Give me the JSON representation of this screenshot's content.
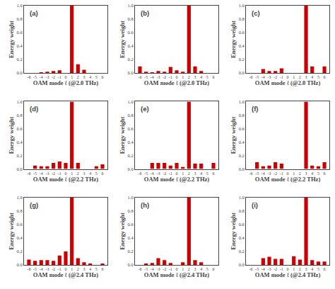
{
  "chart_data": [
    {
      "type": "bar",
      "x": [
        -6,
        -5,
        -4,
        -3,
        -2,
        -1,
        0,
        1,
        2,
        3,
        4,
        5,
        6
      ],
      "values": [
        0.0,
        0.0,
        0.01,
        0.02,
        0.03,
        0.04,
        0.0,
        1.0,
        0.13,
        0.05,
        0.0,
        0.0,
        0.0
      ],
      "color": "#cc0000",
      "xlabel": "OAM mode ℓ (@2.0 THz)",
      "ylabel": "Energy weight",
      "annotations": [
        "(a)"
      ],
      "xlim": [
        -6.8,
        6.8
      ],
      "xticks": [
        -6,
        -5,
        -4,
        -3,
        -2,
        -1,
        0,
        1,
        2,
        3,
        4,
        5,
        6
      ],
      "ylim": [
        0,
        1.0
      ],
      "yticks": [
        {
          "value": 0.0,
          "label": "0.0"
        },
        0.2,
        0.4,
        0.6,
        0.8,
        {
          "value": 1.0,
          "label": "1.0"
        }
      ],
      "grid": false
    },
    {
      "type": "bar",
      "x": [
        -6,
        -5,
        -4,
        -3,
        -2,
        -1,
        0,
        1,
        2,
        3,
        4,
        5,
        6
      ],
      "values": [
        0.1,
        0.02,
        0.01,
        0.03,
        0.02,
        0.09,
        0.04,
        0.02,
        1.0,
        0.1,
        0.03,
        0.0,
        0.0
      ],
      "color": "#cc0000",
      "xlabel": "OAM mode ℓ (@2.0 THz)",
      "ylabel": "Energy weight",
      "annotations": [
        "(b)"
      ],
      "xlim": [
        -6.8,
        6.8
      ],
      "xticks": [
        -6,
        -5,
        -4,
        -3,
        -2,
        -1,
        0,
        1,
        2,
        3,
        4,
        5,
        6
      ],
      "ylim": [
        0,
        1.0
      ],
      "yticks": [
        {
          "value": 0.0,
          "label": "0.0"
        },
        0.2,
        0.4,
        0.6,
        0.8,
        {
          "value": 1.0,
          "label": "1.0"
        }
      ],
      "grid": false
    },
    {
      "type": "bar",
      "x": [
        -6,
        -5,
        -4,
        -3,
        -2,
        -1,
        0,
        1,
        2,
        3,
        4,
        5,
        6
      ],
      "values": [
        0.0,
        0.0,
        0.06,
        0.03,
        0.03,
        0.07,
        0.0,
        0.0,
        0.0,
        1.0,
        0.1,
        0.0,
        0.1
      ],
      "color": "#cc0000",
      "xlabel": "OAM mode ℓ (@2.0 THz)",
      "ylabel": "Energy weight",
      "annotations": [
        "(c)"
      ],
      "xlim": [
        -6.8,
        6.8
      ],
      "xticks": [
        -6,
        -5,
        -4,
        -3,
        -2,
        -1,
        0,
        1,
        2,
        3,
        4,
        5,
        6
      ],
      "ylim": [
        0,
        1.0
      ],
      "yticks": [
        {
          "value": 0.0,
          "label": "0.0"
        },
        0.2,
        0.4,
        0.6,
        0.8,
        {
          "value": 1.0,
          "label": "1.0"
        }
      ],
      "grid": false
    },
    {
      "type": "bar",
      "x": [
        -6,
        -5,
        -4,
        -3,
        -2,
        -1,
        0,
        1,
        2,
        3,
        4,
        5,
        6
      ],
      "values": [
        0.0,
        0.05,
        0.04,
        0.04,
        0.09,
        0.11,
        0.09,
        1.0,
        0.09,
        0.0,
        0.0,
        0.04,
        0.07
      ],
      "color": "#cc0000",
      "xlabel": "OAM mode ℓ (@2.2 THz)",
      "ylabel": "Energy weight",
      "annotations": [
        "(d)"
      ],
      "xlim": [
        -6.8,
        6.8
      ],
      "xticks": [
        -6,
        -5,
        -4,
        -3,
        -2,
        -1,
        0,
        1,
        2,
        3,
        4,
        5,
        6
      ],
      "ylim": [
        0,
        1.0
      ],
      "yticks": [
        {
          "value": 0.0,
          "label": "0.0"
        },
        0.2,
        0.4,
        0.6,
        0.8,
        {
          "value": 1.0,
          "label": "1.0"
        }
      ],
      "grid": false
    },
    {
      "type": "bar",
      "x": [
        -6,
        -5,
        -4,
        -3,
        -2,
        -1,
        0,
        1,
        2,
        3,
        4,
        5,
        6
      ],
      "values": [
        0.0,
        0.0,
        0.09,
        0.09,
        0.09,
        0.05,
        0.09,
        0.03,
        1.0,
        0.08,
        0.08,
        0.0,
        0.09
      ],
      "color": "#cc0000",
      "xlabel": "OAM mode ℓ (@2.2 THz)",
      "ylabel": "Energy weight",
      "annotations": [
        "(e)"
      ],
      "xlim": [
        -6.8,
        6.8
      ],
      "xticks": [
        -6,
        -5,
        -4,
        -3,
        -2,
        -1,
        0,
        1,
        2,
        3,
        4,
        5,
        6
      ],
      "ylim": [
        0,
        1.0
      ],
      "yticks": [
        {
          "value": 0.0,
          "label": "0.0"
        },
        0.2,
        0.4,
        0.6,
        0.8,
        {
          "value": 1.0,
          "label": "1.0"
        }
      ],
      "grid": false
    },
    {
      "type": "bar",
      "x": [
        -6,
        -5,
        -4,
        -3,
        -2,
        -1,
        0,
        1,
        2,
        3,
        4,
        5,
        6
      ],
      "values": [
        0.0,
        0.1,
        0.04,
        0.05,
        0.1,
        0.08,
        0.0,
        0.0,
        0.0,
        1.0,
        0.05,
        0.04,
        0.1
      ],
      "color": "#cc0000",
      "xlabel": "OAM mode ℓ (@2.2 THz)",
      "ylabel": "Energy weight",
      "annotations": [
        "(f)"
      ],
      "xlim": [
        -6.8,
        6.8
      ],
      "xticks": [
        -6,
        -5,
        -4,
        -3,
        -2,
        -1,
        0,
        1,
        2,
        3,
        4,
        5,
        6
      ],
      "ylim": [
        0,
        1.0
      ],
      "yticks": [
        {
          "value": 0.0,
          "label": "0.0"
        },
        0.2,
        0.4,
        0.6,
        0.8,
        {
          "value": 1.0,
          "label": "1.0"
        }
      ],
      "grid": false
    },
    {
      "type": "bar",
      "x": [
        -6,
        -5,
        -4,
        -3,
        -2,
        -1,
        0,
        1,
        2,
        3,
        4,
        5,
        6
      ],
      "values": [
        0.08,
        0.06,
        0.07,
        0.07,
        0.06,
        0.14,
        0.2,
        1.0,
        0.1,
        0.04,
        0.02,
        0.0,
        0.02
      ],
      "color": "#cc0000",
      "xlabel": "OAM mode ℓ (@2.4 THz)",
      "ylabel": "Energy weight",
      "annotations": [
        "(g)"
      ],
      "xlim": [
        -6.8,
        6.8
      ],
      "xticks": [
        -6,
        -5,
        -4,
        -3,
        -2,
        -1,
        0,
        1,
        2,
        3,
        4,
        5,
        6
      ],
      "ylim": [
        0,
        1.0
      ],
      "yticks": [
        {
          "value": 0.0,
          "label": "0.0"
        },
        0.2,
        0.4,
        0.6,
        0.8,
        {
          "value": 1.0,
          "label": "1.0"
        }
      ],
      "grid": false
    },
    {
      "type": "bar",
      "x": [
        -6,
        -5,
        -4,
        -3,
        -2,
        -1,
        0,
        1,
        2,
        3,
        4,
        5,
        6
      ],
      "values": [
        0.0,
        0.02,
        0.03,
        0.1,
        0.07,
        0.03,
        0.0,
        0.04,
        1.0,
        0.07,
        0.04,
        0.0,
        0.0
      ],
      "color": "#cc0000",
      "xlabel": "OAM mode ℓ (@2.4 THz)",
      "ylabel": "Energy weight",
      "annotations": [
        "(h)"
      ],
      "xlim": [
        -6.8,
        6.8
      ],
      "xticks": [
        -6,
        -5,
        -4,
        -3,
        -2,
        -1,
        0,
        1,
        2,
        3,
        4,
        5,
        6
      ],
      "ylim": [
        0,
        1.0
      ],
      "yticks": [
        {
          "value": 0.0,
          "label": "0.0"
        },
        0.2,
        0.4,
        0.6,
        0.8,
        {
          "value": 1.0,
          "label": "1.0"
        }
      ],
      "grid": false
    },
    {
      "type": "bar",
      "x": [
        -6,
        -5,
        -4,
        -3,
        -2,
        -1,
        0,
        1,
        2,
        3,
        4,
        5,
        6
      ],
      "values": [
        0.0,
        0.0,
        0.1,
        0.12,
        0.09,
        0.09,
        0.0,
        0.13,
        0.08,
        1.0,
        0.07,
        0.05,
        0.05
      ],
      "color": "#cc0000",
      "xlabel": "OAM mode ℓ (@2.4 THz)",
      "ylabel": "Energy weight",
      "annotations": [
        "(i)"
      ],
      "xlim": [
        -6.8,
        6.8
      ],
      "xticks": [
        -6,
        -5,
        -4,
        -3,
        -2,
        -1,
        0,
        1,
        2,
        3,
        4,
        5,
        6
      ],
      "ylim": [
        0,
        1.0
      ],
      "yticks": [
        {
          "value": 0.0,
          "label": "0.0"
        },
        0.2,
        0.4,
        0.6,
        0.8,
        {
          "value": 1.0,
          "label": "1.0"
        }
      ],
      "grid": false
    }
  ]
}
